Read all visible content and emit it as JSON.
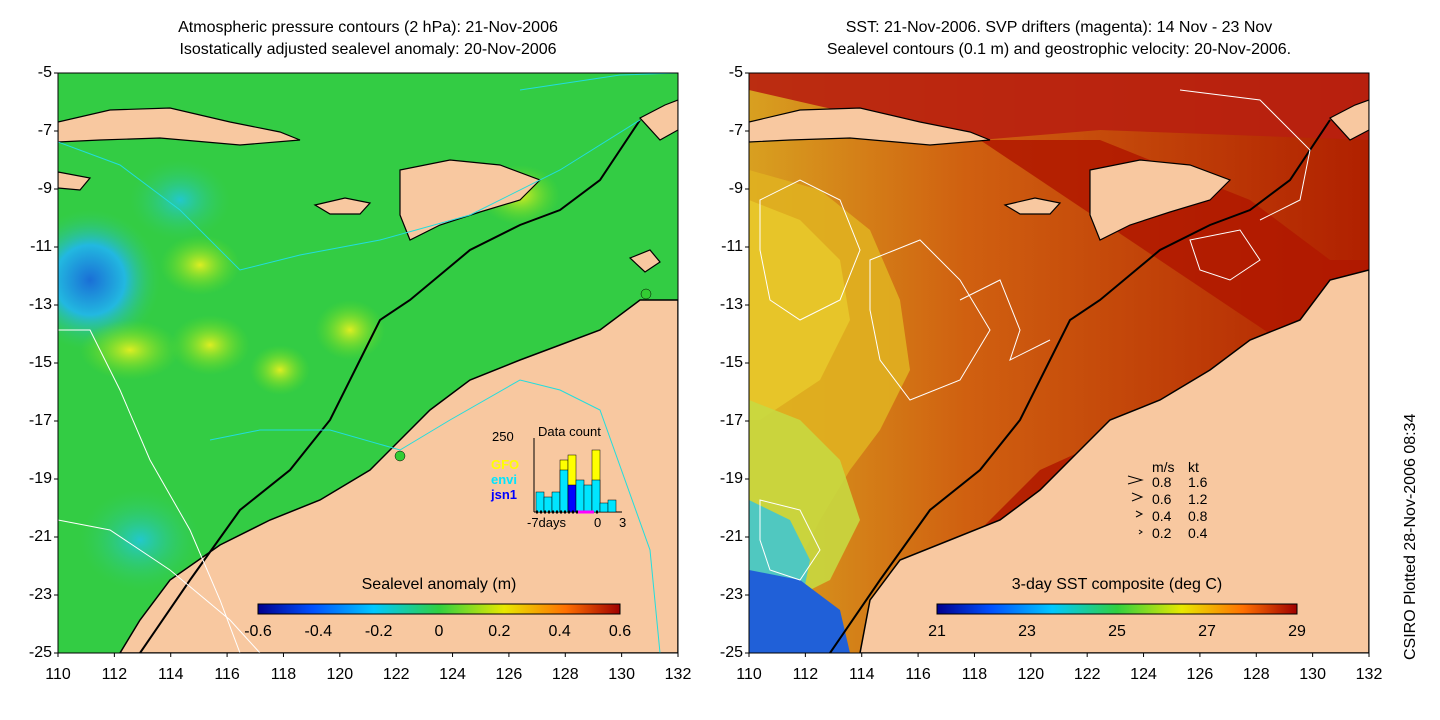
{
  "left_panel": {
    "title_line1": "Atmospheric pressure contours (2 hPa): 21-Nov-2006",
    "title_line2": "Isostatically adjusted sealevel anomaly: 20-Nov-2006",
    "colorbar_title": "Sealevel anomaly (m)",
    "colorbar_ticks": [
      "-0.6",
      "-0.4",
      "-0.2",
      "0",
      "0.2",
      "0.4",
      "0.6"
    ],
    "data_count": {
      "title": "Data count",
      "ymax_label": "250",
      "sources": [
        {
          "name": "GFO",
          "color": "#ffff00"
        },
        {
          "name": "envi",
          "color": "#00e5ff"
        },
        {
          "name": "jsn1",
          "color": "#0000ff"
        }
      ],
      "xlabel_left": "-7days",
      "xlabel_mid": "0",
      "xlabel_right": "3"
    }
  },
  "right_panel": {
    "title_line1": "SST: 21-Nov-2006. SVP drifters (magenta): 14 Nov - 23 Nov",
    "title_line2": "Sealevel contours (0.1 m) and geostrophic velocity: 20-Nov-2006.",
    "colorbar_title": "3-day SST composite (deg C)",
    "colorbar_ticks": [
      "21",
      "23",
      "25",
      "27",
      "29"
    ],
    "velocity_legend": {
      "header_ms": "m/s",
      "header_kt": "kt",
      "rows": [
        {
          "ms": "0.8",
          "kt": "1.6"
        },
        {
          "ms": "0.6",
          "kt": "1.2"
        },
        {
          "ms": "0.4",
          "kt": "0.8"
        },
        {
          "ms": "0.2",
          "kt": "0.4"
        }
      ]
    }
  },
  "axes": {
    "y_ticks": [
      "-5",
      "-7",
      "-9",
      "-11",
      "-13",
      "-15",
      "-17",
      "-19",
      "-21",
      "-23",
      "-25"
    ],
    "x_ticks": [
      "110",
      "112",
      "114",
      "116",
      "118",
      "120",
      "122",
      "124",
      "126",
      "128",
      "130",
      "132"
    ],
    "lat_range": [
      -25,
      -5
    ],
    "lon_range": [
      110,
      132
    ]
  },
  "credit": "CSIRO Plotted 28-Nov-2006 08:34",
  "colors": {
    "land": "#f8c8a0",
    "ocean_green": "#33cc33",
    "coastline": "#000000"
  }
}
